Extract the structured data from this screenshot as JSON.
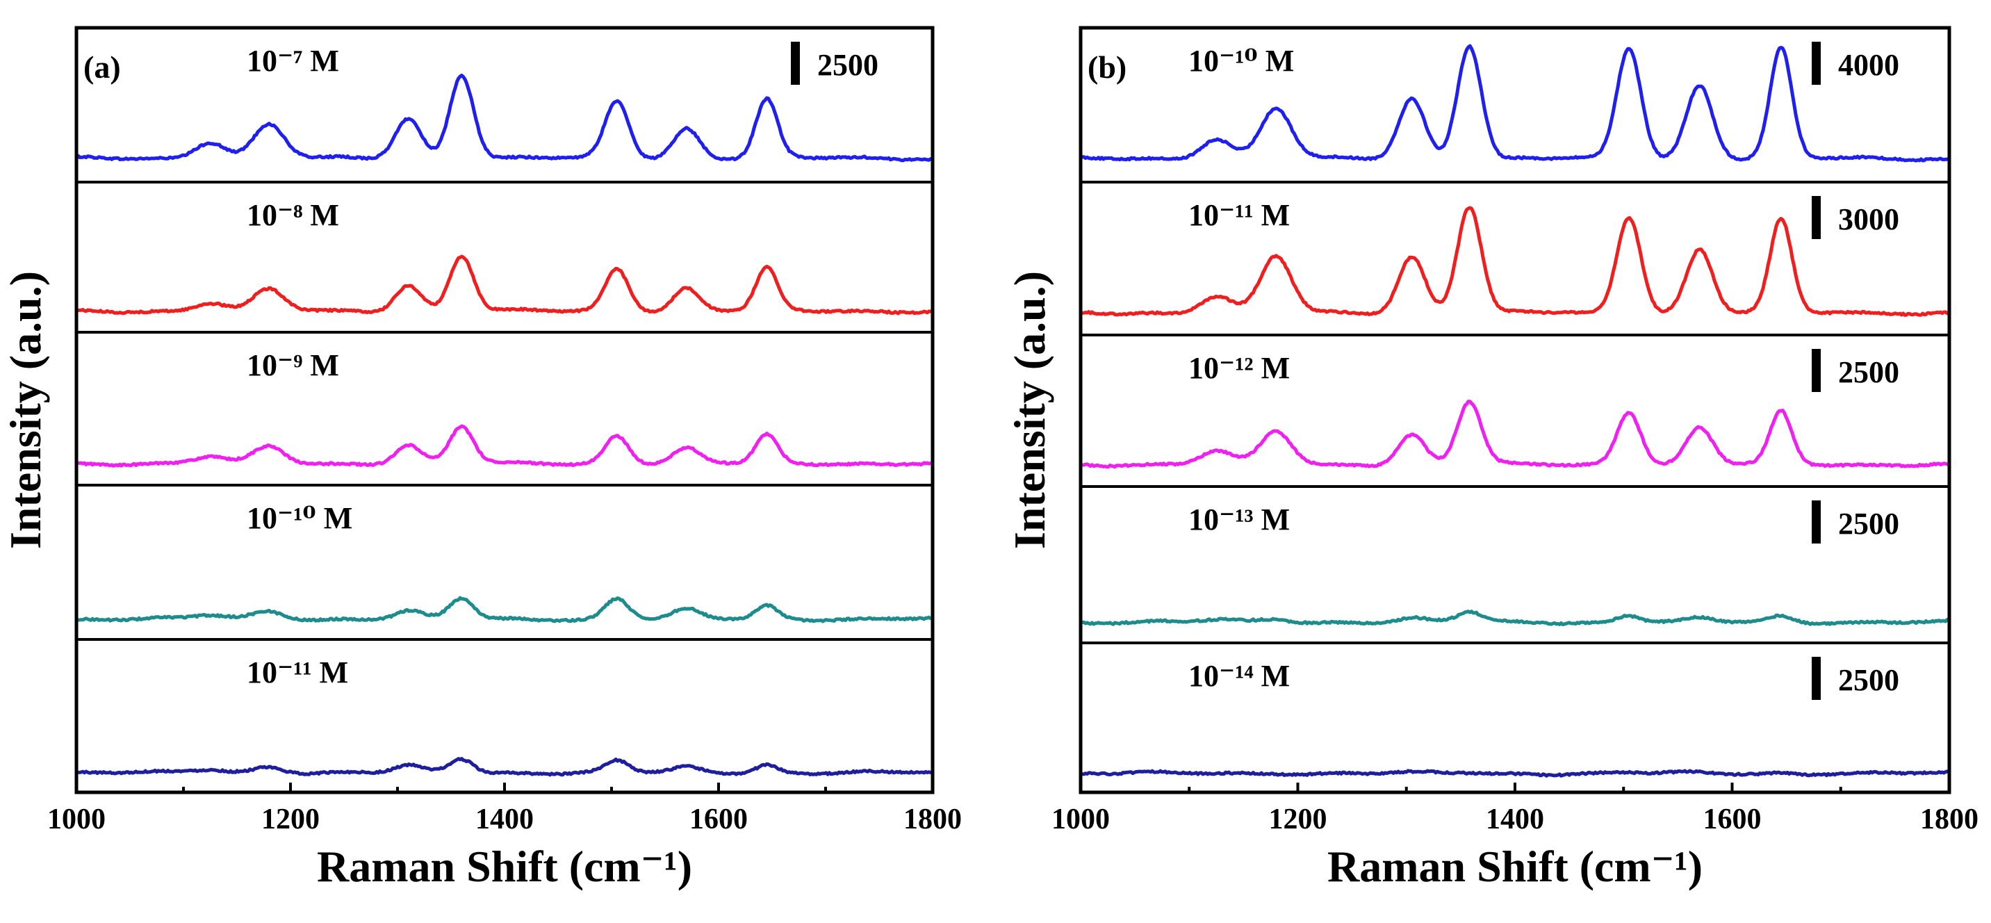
{
  "chart_data": [
    {
      "type": "line",
      "panel_label": "(a)",
      "xlabel": "Raman Shift (cm⁻¹)",
      "ylabel": "Intensity (a.u.)",
      "xlim": [
        1000,
        1800
      ],
      "xticks": [
        "1000",
        "1200",
        "1400",
        "1600",
        "1800"
      ],
      "peak_positions": [
        1125,
        1180,
        1310,
        1360,
        1505,
        1570,
        1645
      ],
      "series": [
        {
          "name": "10⁻⁷ M",
          "color": "#1f1ff0",
          "scale_bar": "2500",
          "baseline": 160,
          "peak_heights": [
            500,
            1000,
            1200,
            2500,
            1700,
            900,
            1750
          ]
        },
        {
          "name": "10⁻⁸ M",
          "color": "#f01f1f",
          "scale_bar": "",
          "baseline": 100,
          "peak_heights": [
            250,
            650,
            800,
            1700,
            1300,
            700,
            1300
          ]
        },
        {
          "name": "10⁻⁹ M",
          "color": "#f020f0",
          "scale_bar": "",
          "baseline": 100,
          "peak_heights": [
            200,
            500,
            550,
            1100,
            850,
            450,
            850
          ]
        },
        {
          "name": "10⁻¹⁰ M",
          "color": "#1e8c8c",
          "scale_bar": "",
          "baseline": 60,
          "peak_heights": [
            100,
            230,
            230,
            600,
            600,
            270,
            400
          ]
        },
        {
          "name": "10⁻¹¹ M",
          "color": "#1f1f9e",
          "scale_bar": "",
          "baseline": 40,
          "peak_heights": [
            100,
            180,
            200,
            420,
            350,
            150,
            250
          ]
        }
      ]
    },
    {
      "type": "line",
      "panel_label": "(b)",
      "xlabel": "Raman Shift (cm⁻¹)",
      "ylabel": "Intensity (a.u.)",
      "xlim": [
        1000,
        1800
      ],
      "xticks": [
        "1000",
        "1200",
        "1400",
        "1600",
        "1800"
      ],
      "peak_positions": [
        1125,
        1180,
        1305,
        1358,
        1505,
        1570,
        1645
      ],
      "series": [
        {
          "name": "10⁻¹⁰ M",
          "color": "#1f1ff0",
          "scale_bar": "4000",
          "baseline": 150,
          "peak_heights": [
            600,
            1500,
            1800,
            3400,
            3300,
            2200,
            3300
          ]
        },
        {
          "name": "10⁻¹¹ M",
          "color": "#f01f1f",
          "scale_bar": "3000",
          "baseline": 120,
          "peak_heights": [
            500,
            1700,
            1700,
            3200,
            2900,
            1900,
            2800
          ]
        },
        {
          "name": "10⁻¹² M",
          "color": "#f020f0",
          "scale_bar": "2500",
          "baseline": 120,
          "peak_heights": [
            400,
            1000,
            900,
            1900,
            1600,
            1100,
            1600
          ]
        },
        {
          "name": "10⁻¹³ M",
          "color": "#1e8c8c",
          "scale_bar": "2500",
          "baseline": 60,
          "peak_heights": [
            60,
            100,
            100,
            300,
            200,
            100,
            180
          ]
        },
        {
          "name": "10⁻¹⁴ M",
          "color": "#1f1f9e",
          "scale_bar": "2500",
          "baseline": 30,
          "peak_heights": [
            10,
            15,
            15,
            30,
            25,
            15,
            25
          ]
        }
      ]
    }
  ]
}
